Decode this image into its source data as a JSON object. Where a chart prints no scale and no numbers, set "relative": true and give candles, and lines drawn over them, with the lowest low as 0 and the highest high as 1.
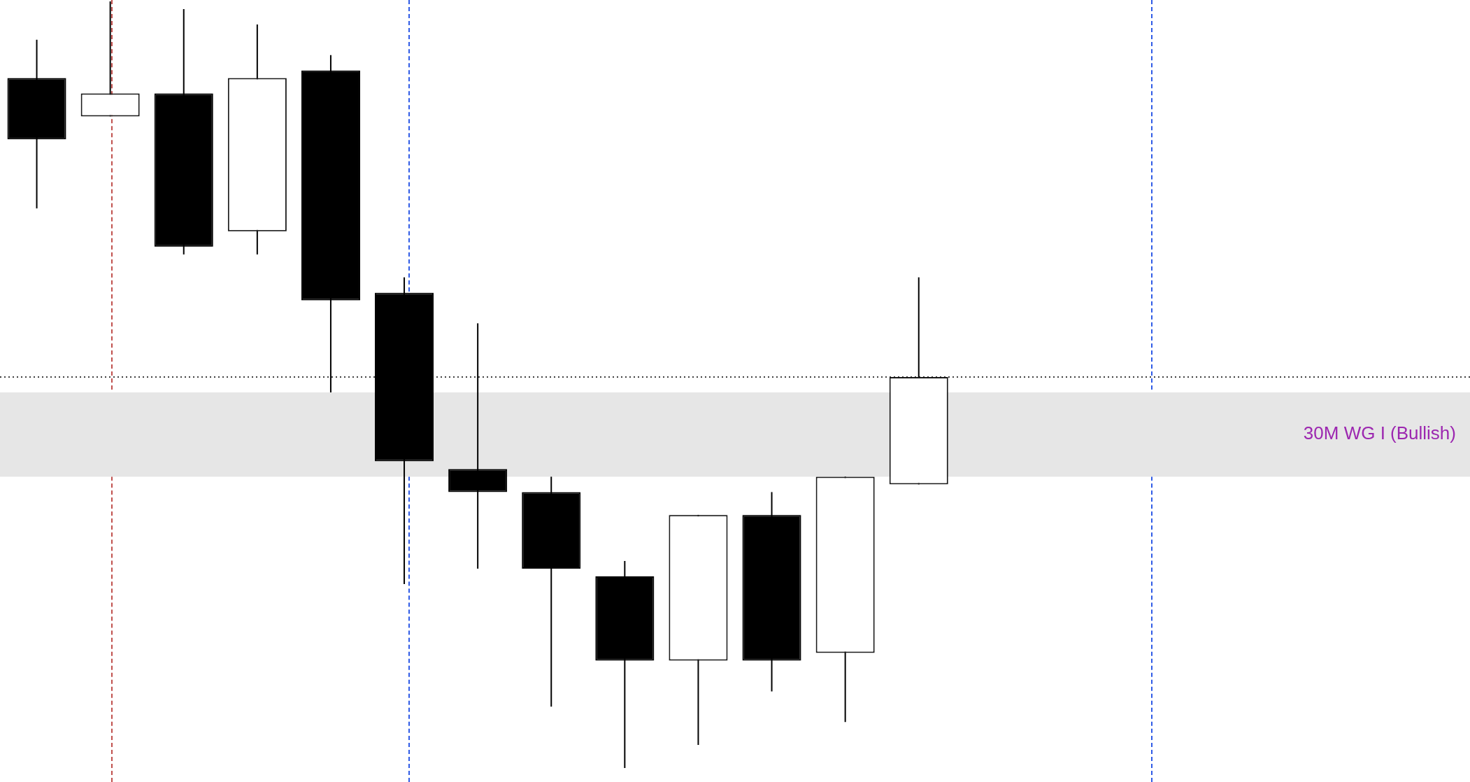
{
  "chart_data": {
    "type": "candlestick",
    "relative": true,
    "categories": [
      null,
      null,
      null,
      null,
      null,
      null,
      null,
      null,
      null,
      null,
      null,
      null,
      null,
      null,
      null,
      null,
      null,
      null,
      null,
      null
    ],
    "ohlc": [
      [
        0.9,
        0.95,
        0.73,
        0.82
      ],
      [
        0.85,
        1.0,
        0.85,
        0.88
      ],
      [
        0.88,
        0.99,
        0.67,
        0.68
      ],
      [
        0.7,
        0.97,
        0.67,
        0.9
      ],
      [
        0.91,
        0.93,
        0.49,
        0.61
      ],
      [
        0.62,
        0.64,
        0.24,
        0.4
      ],
      [
        0.39,
        0.58,
        0.26,
        0.36
      ],
      [
        0.36,
        0.38,
        0.08,
        0.26
      ],
      [
        0.25,
        0.27,
        0.0,
        0.14
      ],
      [
        0.14,
        0.33,
        0.03,
        0.33
      ],
      [
        0.33,
        0.36,
        0.1,
        0.14
      ],
      [
        0.15,
        0.38,
        0.06,
        0.38
      ],
      [
        0.37,
        0.64,
        0.37,
        0.51
      ],
      null,
      null,
      null,
      null,
      null,
      null,
      null
    ],
    "ref_lines": [
      {
        "axis": "y",
        "value": 0.51,
        "color": "#000000",
        "line_style": "dotted"
      }
    ],
    "bands": [
      {
        "axis": "y",
        "from": 0.38,
        "to": 0.49,
        "label": "30M WG I (Bullish)",
        "color": "#e6e6e6"
      }
    ]
  }
}
